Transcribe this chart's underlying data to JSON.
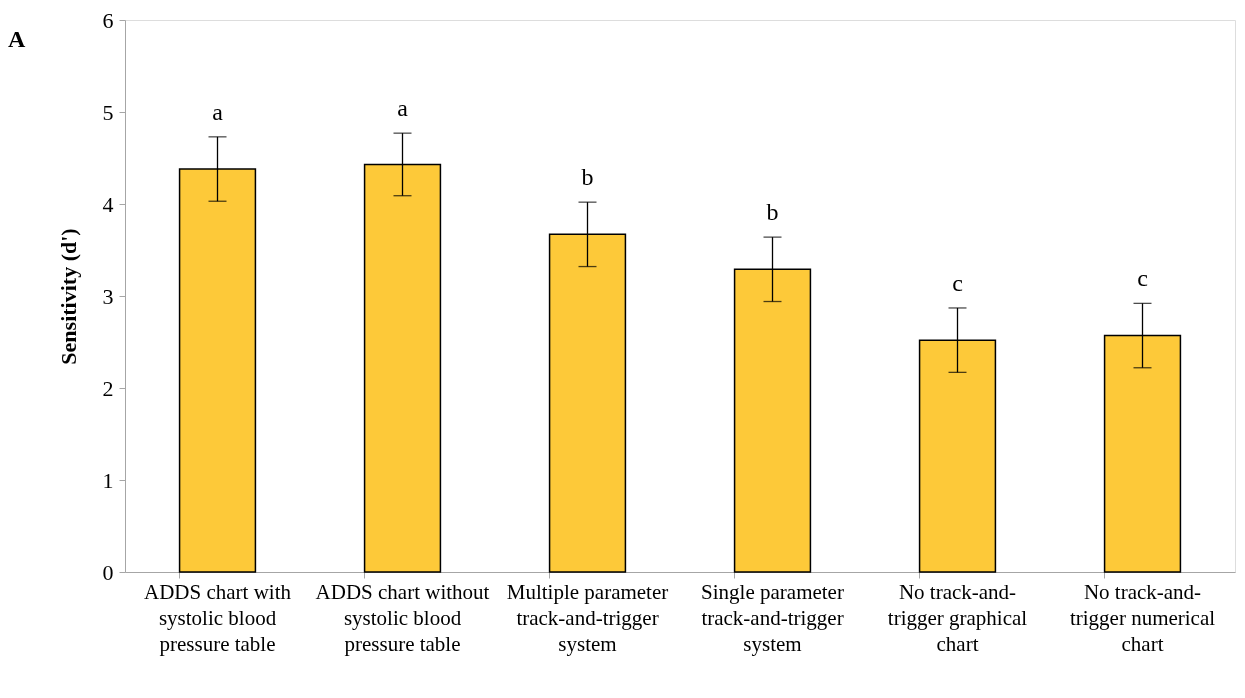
{
  "chart_data": {
    "type": "bar",
    "title": "A",
    "ylabel": "Sensitivity (d')",
    "categories": [
      "ADDS chart with systolic blood pressure table",
      "ADDS chart without systolic blood pressure table",
      "Multiple parameter track-and-trigger system",
      "Single parameter track-and-trigger system",
      "No track-and-trigger graphical chart",
      "No track-and-trigger numerical chart"
    ],
    "values": [
      4.38,
      4.43,
      3.67,
      3.29,
      2.52,
      2.57
    ],
    "errors": [
      0.35,
      0.34,
      0.35,
      0.35,
      0.35,
      0.35
    ],
    "color": "#fdc939",
    "ylim": [
      0,
      6
    ],
    "yticks": [
      0,
      1,
      2,
      3,
      4,
      5,
      6
    ],
    "grid": false,
    "annotations": [
      "a",
      "a",
      "b",
      "b",
      "c",
      "c"
    ]
  }
}
